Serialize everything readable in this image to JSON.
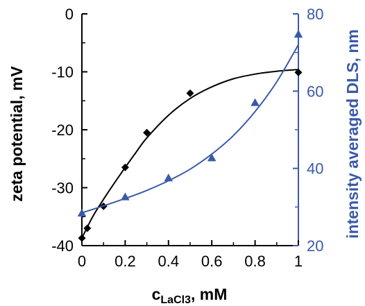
{
  "chart_data": {
    "type": "scatter",
    "xlabel": {
      "main": "c",
      "sub": "LaCl3",
      "suffix": ", mM"
    },
    "ylabel_left": "zeta potential, mV",
    "ylabel_right": "intensity averaged DLS, nm",
    "xlim": [
      0,
      1
    ],
    "ylim_left": [
      -40,
      0
    ],
    "ylim_right": [
      20,
      80
    ],
    "x_ticks": [
      "0",
      "0.2",
      "0.4",
      "0.6",
      "0.8",
      "1"
    ],
    "y_left_ticks": [
      "-40",
      "-30",
      "-20",
      "-10",
      "0"
    ],
    "y_right_ticks": [
      "20",
      "40",
      "60",
      "80"
    ],
    "colors": {
      "left_axis": "#000000",
      "right_axis": "#3a5aa8"
    },
    "series": [
      {
        "axis": "left",
        "marker": "diamond",
        "color": "#000000",
        "points": [
          {
            "x": 0.0,
            "y": -38.7
          },
          {
            "x": 0.025,
            "y": -37.0
          },
          {
            "x": 0.1,
            "y": -33.2
          },
          {
            "x": 0.2,
            "y": -26.5
          },
          {
            "x": 0.3,
            "y": -20.5
          },
          {
            "x": 0.5,
            "y": -13.7
          },
          {
            "x": 1.0,
            "y": -10.1
          }
        ],
        "trend": [
          {
            "x": 0.0,
            "y": -38.7
          },
          {
            "x": 0.05,
            "y": -35.0
          },
          {
            "x": 0.1,
            "y": -32.0
          },
          {
            "x": 0.15,
            "y": -29.2
          },
          {
            "x": 0.2,
            "y": -26.5
          },
          {
            "x": 0.25,
            "y": -23.9
          },
          {
            "x": 0.3,
            "y": -21.4
          },
          {
            "x": 0.4,
            "y": -17.5
          },
          {
            "x": 0.5,
            "y": -14.6
          },
          {
            "x": 0.6,
            "y": -12.6
          },
          {
            "x": 0.7,
            "y": -11.2
          },
          {
            "x": 0.8,
            "y": -10.4
          },
          {
            "x": 0.9,
            "y": -9.9
          },
          {
            "x": 1.0,
            "y": -9.6
          }
        ]
      },
      {
        "axis": "right",
        "marker": "triangle",
        "color": "#3a5aa8",
        "points": [
          {
            "x": 0.0,
            "y": 28.3
          },
          {
            "x": 0.2,
            "y": 32.5
          },
          {
            "x": 0.4,
            "y": 37.4
          },
          {
            "x": 0.6,
            "y": 42.6
          },
          {
            "x": 0.8,
            "y": 56.9
          },
          {
            "x": 1.0,
            "y": 74.6
          }
        ],
        "trend": [
          {
            "x": 0.0,
            "y": 28.5
          },
          {
            "x": 0.1,
            "y": 30.3
          },
          {
            "x": 0.2,
            "y": 32.2
          },
          {
            "x": 0.3,
            "y": 34.3
          },
          {
            "x": 0.4,
            "y": 36.8
          },
          {
            "x": 0.5,
            "y": 39.8
          },
          {
            "x": 0.6,
            "y": 43.7
          },
          {
            "x": 0.7,
            "y": 48.5
          },
          {
            "x": 0.8,
            "y": 54.7
          },
          {
            "x": 0.9,
            "y": 62.4
          },
          {
            "x": 1.0,
            "y": 72.0
          }
        ]
      }
    ]
  }
}
